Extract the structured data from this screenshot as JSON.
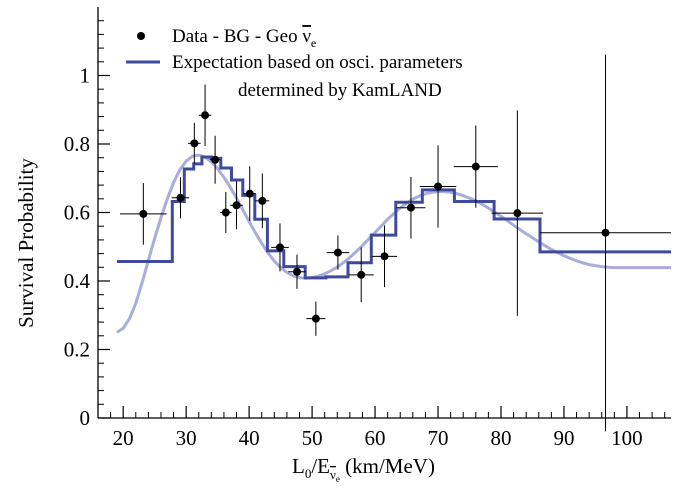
{
  "chart_data": {
    "type": "scatter",
    "xlabel": {
      "main": "L",
      "sub0": "0",
      "slash": "/E",
      "nu": "ν",
      "sub_e": "e",
      "unit": " (km/MeV)"
    },
    "ylabel": "Survival Probability",
    "xlim": [
      16,
      107
    ],
    "ylim": [
      0,
      1.2
    ],
    "x_ticks": [
      20,
      30,
      40,
      50,
      60,
      70,
      80,
      90,
      100
    ],
    "y_ticks": [
      0,
      0.2,
      0.4,
      0.6,
      0.8,
      1
    ],
    "y_tick_labels": [
      "0",
      "0.2",
      "0.4",
      "0.6",
      "0.8",
      "1"
    ],
    "grid": false,
    "legend_position": "top-left",
    "legend": {
      "data_label": {
        "text": "Data - BG - Geo ",
        "nu": "ν",
        "sub": "e"
      },
      "line_label_1": "Expectation based on osci. parameters",
      "line_label_2": "determined by KamLAND"
    },
    "colors": {
      "expectation": "#3f4a9c",
      "smooth_curve": "#a9addb",
      "data": "#000000"
    },
    "data_points": [
      {
        "x": 23.2,
        "y": 0.596,
        "xerr": [
          3.7,
          3.7
        ],
        "yerr": [
          0.09,
          0.09
        ]
      },
      {
        "x": 29.1,
        "y": 0.643,
        "xerr": [
          1.4,
          1.4
        ],
        "yerr": [
          0.06,
          0.06
        ]
      },
      {
        "x": 31.3,
        "y": 0.802,
        "xerr": [
          1.0,
          1.0
        ],
        "yerr": [
          0.06,
          0.06
        ]
      },
      {
        "x": 33.0,
        "y": 0.884,
        "xerr": [
          1.0,
          1.0
        ],
        "yerr": [
          0.09,
          0.09
        ]
      },
      {
        "x": 34.6,
        "y": 0.754,
        "xerr": [
          0.8,
          0.8
        ],
        "yerr": [
          0.07,
          0.07
        ]
      },
      {
        "x": 36.3,
        "y": 0.6,
        "xerr": [
          0.9,
          0.9
        ],
        "yerr": [
          0.06,
          0.06
        ]
      },
      {
        "x": 38.0,
        "y": 0.621,
        "xerr": [
          1.0,
          1.0
        ],
        "yerr": [
          0.07,
          0.07
        ]
      },
      {
        "x": 40.1,
        "y": 0.655,
        "xerr": [
          1.0,
          1.0
        ],
        "yerr": [
          0.08,
          0.08
        ]
      },
      {
        "x": 42.1,
        "y": 0.634,
        "xerr": [
          1.1,
          1.1
        ],
        "yerr": [
          0.08,
          0.08
        ]
      },
      {
        "x": 44.9,
        "y": 0.498,
        "xerr": [
          1.4,
          1.4
        ],
        "yerr": [
          0.07,
          0.07
        ]
      },
      {
        "x": 47.6,
        "y": 0.427,
        "xerr": [
          1.4,
          1.4
        ],
        "yerr": [
          0.05,
          0.05
        ]
      },
      {
        "x": 50.6,
        "y": 0.29,
        "xerr": [
          1.5,
          1.5
        ],
        "yerr": [
          0.05,
          0.05
        ]
      },
      {
        "x": 54.1,
        "y": 0.483,
        "xerr": [
          1.8,
          1.8
        ],
        "yerr": [
          0.05,
          0.05
        ]
      },
      {
        "x": 57.8,
        "y": 0.418,
        "xerr": [
          2.0,
          2.0
        ],
        "yerr": [
          0.08,
          0.08
        ]
      },
      {
        "x": 61.5,
        "y": 0.472,
        "xerr": [
          2.0,
          2.0
        ],
        "yerr": [
          0.09,
          0.09
        ]
      },
      {
        "x": 65.7,
        "y": 0.614,
        "xerr": [
          2.3,
          2.3
        ],
        "yerr": [
          0.09,
          0.09
        ]
      },
      {
        "x": 70.0,
        "y": 0.676,
        "xerr": [
          2.9,
          2.9
        ],
        "yerr": [
          0.12,
          0.12
        ]
      },
      {
        "x": 76.0,
        "y": 0.734,
        "xerr": [
          3.5,
          3.5
        ],
        "yerr": [
          0.12,
          0.12
        ]
      },
      {
        "x": 82.6,
        "y": 0.598,
        "xerr": [
          4.1,
          4.1
        ],
        "yerr": [
          0.3,
          0.3
        ]
      },
      {
        "x": 96.6,
        "y": 0.541,
        "xerr": [
          10.4,
          10.4
        ],
        "yerr": [
          0.58,
          0.52
        ]
      }
    ],
    "step_expectation": [
      {
        "x0": 19.0,
        "x1": 27.8,
        "y": 0.457
      },
      {
        "x0": 27.8,
        "x1": 29.7,
        "y": 0.632
      },
      {
        "x0": 29.7,
        "x1": 31.2,
        "y": 0.727
      },
      {
        "x0": 31.2,
        "x1": 32.5,
        "y": 0.742
      },
      {
        "x0": 32.5,
        "x1": 34.0,
        "y": 0.762
      },
      {
        "x0": 34.0,
        "x1": 35.5,
        "y": 0.758
      },
      {
        "x0": 35.5,
        "x1": 37.2,
        "y": 0.73
      },
      {
        "x0": 37.2,
        "x1": 39.0,
        "y": 0.695
      },
      {
        "x0": 39.0,
        "x1": 40.9,
        "y": 0.65
      },
      {
        "x0": 40.9,
        "x1": 42.9,
        "y": 0.58
      },
      {
        "x0": 42.9,
        "x1": 45.5,
        "y": 0.488
      },
      {
        "x0": 45.5,
        "x1": 48.9,
        "y": 0.442
      },
      {
        "x0": 48.9,
        "x1": 52.2,
        "y": 0.409
      },
      {
        "x0": 52.2,
        "x1": 55.7,
        "y": 0.412
      },
      {
        "x0": 55.7,
        "x1": 59.4,
        "y": 0.453
      },
      {
        "x0": 59.4,
        "x1": 63.3,
        "y": 0.534
      },
      {
        "x0": 63.3,
        "x1": 67.5,
        "y": 0.63
      },
      {
        "x0": 67.5,
        "x1": 72.6,
        "y": 0.666
      },
      {
        "x0": 72.6,
        "x1": 78.9,
        "y": 0.632
      },
      {
        "x0": 78.9,
        "x1": 86.2,
        "y": 0.581
      },
      {
        "x0": 86.2,
        "x1": 107.0,
        "y": 0.485
      }
    ],
    "smooth_expectation": {
      "x": [
        19,
        20,
        21,
        22,
        23,
        24,
        25,
        26,
        27,
        28,
        29,
        30,
        31,
        32,
        33,
        34,
        35,
        36,
        37,
        38,
        39,
        40,
        41,
        42,
        43,
        44,
        45,
        46,
        47,
        48,
        49,
        50,
        51,
        52,
        53,
        54,
        55,
        56,
        57,
        58,
        59,
        60,
        61,
        62,
        63,
        64,
        65,
        66,
        67,
        68,
        69,
        70,
        71,
        72,
        73,
        74,
        75,
        76,
        77,
        78,
        79,
        80,
        81,
        82,
        83,
        84,
        85,
        86,
        87,
        88,
        89,
        90,
        91,
        92,
        93,
        94,
        95,
        96,
        97,
        98,
        99,
        100,
        101,
        102,
        103,
        104,
        105,
        106,
        107
      ],
      "y": [
        0.25,
        0.262,
        0.29,
        0.335,
        0.395,
        0.46,
        0.525,
        0.585,
        0.64,
        0.688,
        0.725,
        0.75,
        0.764,
        0.768,
        0.762,
        0.748,
        0.728,
        0.703,
        0.674,
        0.642,
        0.608,
        0.574,
        0.541,
        0.51,
        0.482,
        0.458,
        0.439,
        0.425,
        0.415,
        0.41,
        0.408,
        0.41,
        0.414,
        0.421,
        0.43,
        0.441,
        0.454,
        0.469,
        0.486,
        0.504,
        0.523,
        0.542,
        0.561,
        0.58,
        0.597,
        0.613,
        0.627,
        0.639,
        0.648,
        0.655,
        0.659,
        0.661,
        0.661,
        0.659,
        0.655,
        0.649,
        0.642,
        0.634,
        0.624,
        0.613,
        0.601,
        0.589,
        0.576,
        0.563,
        0.55,
        0.538,
        0.526,
        0.514,
        0.503,
        0.492,
        0.483,
        0.474,
        0.466,
        0.459,
        0.453,
        0.448,
        0.445,
        0.442,
        0.44,
        0.439,
        0.439,
        0.439,
        0.439,
        0.439,
        0.439,
        0.439,
        0.439,
        0.439,
        0.439
      ]
    }
  }
}
